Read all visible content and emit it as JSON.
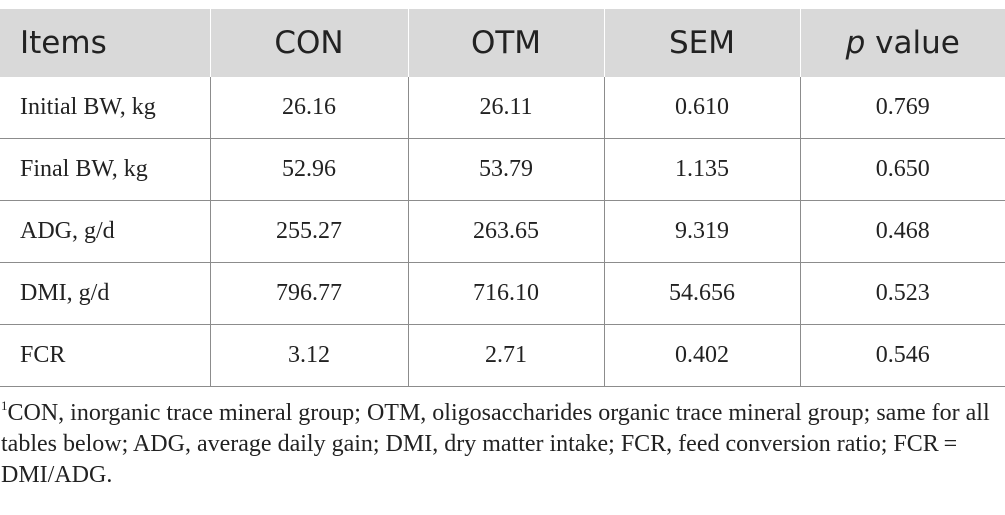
{
  "table": {
    "headers": {
      "items": "Items",
      "con": "CON",
      "otm": "OTM",
      "sem": "SEM",
      "p_letter": "p",
      "p_rest": " value"
    },
    "rows": [
      [
        "Initial BW, kg",
        "26.16",
        "26.11",
        "0.610",
        "0.769"
      ],
      [
        "Final BW, kg",
        "52.96",
        "53.79",
        "1.135",
        "0.650"
      ],
      [
        "ADG, g/d",
        "255.27",
        "263.65",
        "9.319",
        "0.468"
      ],
      [
        "DMI, g/d",
        "796.77",
        "716.10",
        "54.656",
        "0.523"
      ],
      [
        "FCR",
        "3.12",
        "2.71",
        "0.402",
        "0.546"
      ]
    ]
  },
  "footnote": {
    "marker": "1",
    "text": "CON, inorganic trace mineral group; OTM, oligosaccharides organic trace mineral group; same for all tables below; ADG, average daily gain; DMI, dry matter intake; FCR, feed conversion ratio; FCR = DMI/ADG."
  },
  "colors": {
    "header_bg": "#d9d9d9",
    "grid_line": "#8c8c8c",
    "text": "#222222"
  }
}
